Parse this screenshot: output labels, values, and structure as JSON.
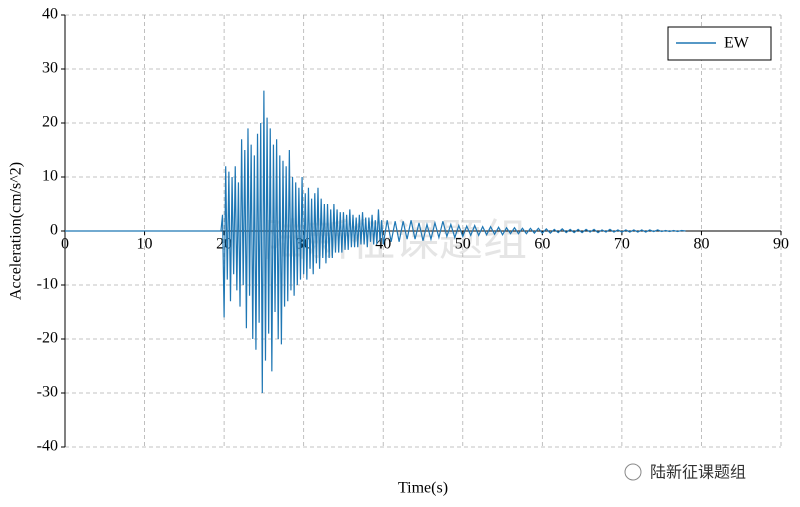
{
  "chart_data": {
    "type": "line",
    "x_label": "Time(s)",
    "y_label": "Acceleration(cm/s^2)",
    "xlim": [
      0,
      90
    ],
    "ylim": [
      -40,
      40
    ],
    "xticks": [
      0,
      10,
      20,
      30,
      40,
      50,
      60,
      70,
      80,
      90
    ],
    "yticks": [
      -40,
      -30,
      -20,
      -10,
      0,
      10,
      20,
      30,
      40
    ],
    "grid": true,
    "legend": "upper right",
    "x": [
      0,
      19.6,
      19.8,
      20,
      20.2,
      20.4,
      20.6,
      20.8,
      21,
      21.2,
      21.4,
      21.6,
      21.8,
      22,
      22.2,
      22.4,
      22.6,
      22.8,
      23,
      23.2,
      23.4,
      23.6,
      23.8,
      24,
      24.2,
      24.4,
      24.6,
      24.8,
      25,
      25.2,
      25.4,
      25.6,
      25.8,
      26,
      26.2,
      26.4,
      26.6,
      26.8,
      27,
      27.2,
      27.4,
      27.6,
      27.8,
      28,
      28.2,
      28.4,
      28.6,
      28.8,
      29,
      29.2,
      29.4,
      29.6,
      29.8,
      30,
      30.2,
      30.4,
      30.6,
      30.8,
      31,
      31.2,
      31.4,
      31.6,
      31.8,
      32,
      32.2,
      32.4,
      32.6,
      32.8,
      33,
      33.2,
      33.4,
      33.6,
      33.8,
      34,
      34.2,
      34.4,
      34.6,
      34.8,
      35,
      35.2,
      35.4,
      35.6,
      35.8,
      36,
      36.2,
      36.4,
      36.6,
      36.8,
      37,
      37.2,
      37.4,
      37.6,
      37.8,
      38,
      38.2,
      38.4,
      38.6,
      38.8,
      39,
      39.2,
      39.4,
      39.6,
      39.8,
      40,
      40.5,
      41,
      41.5,
      42,
      42.5,
      43,
      43.5,
      44,
      44.5,
      45,
      45.5,
      46,
      46.5,
      47,
      47.5,
      48,
      48.5,
      49,
      49.5,
      50,
      50.5,
      51,
      51.5,
      52,
      52.5,
      53,
      53.5,
      54,
      54.5,
      55,
      55.5,
      56,
      56.5,
      57,
      57.5,
      58,
      58.5,
      59,
      59.5,
      60,
      60.5,
      61,
      61.5,
      62,
      62.5,
      63,
      63.5,
      64,
      64.5,
      65,
      65.5,
      66,
      66.5,
      67,
      67.5,
      68,
      68.5,
      69,
      69.5,
      70,
      70.5,
      71,
      71.5,
      72,
      72.5,
      73,
      73.5,
      74,
      74.5,
      75,
      75.5,
      76,
      76.5,
      77,
      77.5,
      78
    ],
    "series": [
      {
        "name": "EW",
        "color": "#1f77b4",
        "values": [
          0,
          0,
          3,
          -16,
          12,
          -9,
          11,
          -13,
          10,
          -8,
          12,
          -11,
          9,
          -14,
          17,
          -10,
          15,
          -18,
          19,
          -12,
          16,
          -20,
          14,
          -22,
          18,
          -17,
          20,
          -30,
          26,
          -24,
          21,
          -19,
          19,
          -26,
          16,
          -15,
          17,
          -20,
          14,
          -21,
          13,
          -14,
          12,
          -13,
          15,
          -11,
          10,
          -12,
          9,
          -10,
          8,
          -9,
          10,
          -8,
          7,
          -9,
          8,
          -7,
          6,
          -8,
          7,
          -6,
          8,
          -7,
          6,
          -5,
          5,
          -6,
          5,
          -5,
          4,
          -5,
          5,
          -4,
          4,
          -4,
          3.5,
          -4,
          3.5,
          -3.5,
          3,
          -3.5,
          4,
          -3,
          3,
          -3,
          2.5,
          -3,
          3,
          -2.5,
          3.5,
          -2.5,
          2.5,
          -3,
          2.5,
          -2,
          3,
          -2.5,
          2,
          -2.5,
          4,
          -2,
          2,
          -2.5,
          2,
          -2,
          1.8,
          -2,
          1.8,
          -1.5,
          2,
          -1.5,
          1.5,
          -1.8,
          1.2,
          -1.5,
          1.5,
          -1.2,
          1.8,
          -1,
          1.2,
          -1.2,
          1,
          -1,
          0.9,
          -0.8,
          1,
          -0.8,
          0.8,
          -0.7,
          0.8,
          -0.6,
          0.7,
          -0.7,
          0.6,
          -0.5,
          0.6,
          -0.5,
          0.5,
          -0.5,
          0.5,
          -0.4,
          0.5,
          -0.4,
          0.4,
          -0.4,
          0.3,
          -0.3,
          0.4,
          -0.3,
          0.3,
          -0.3,
          0.3,
          -0.3,
          0.3,
          -0.2,
          0.3,
          -0.3,
          0.2,
          -0.2,
          0.3,
          -0.2,
          0.2,
          -0.2,
          0.2,
          -0.2,
          0.2,
          -0.2,
          0.2,
          -0.2,
          0.2,
          -0.1,
          0.2,
          -0.1,
          0.1,
          -0.1,
          0.1,
          -0.1,
          0.1,
          0
        ]
      }
    ]
  },
  "watermark": "陆新征课题组"
}
